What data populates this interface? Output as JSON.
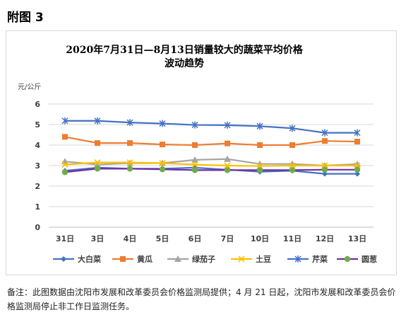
{
  "page": {
    "heading": "附图 3",
    "note": "备注：此图数据由沈阳市发展和改革委员会价格监测局提供；4 月 21 日起，沈阳市发展和改革委员会价格监测局停止非工作日监测任务。"
  },
  "chart_data": {
    "type": "line",
    "title_lines": [
      "2020年7月31日—8月13日销量较大的蔬菜平均价格",
      "波动趋势"
    ],
    "ylabel": "元/公斤",
    "xlabel": "",
    "categories": [
      "31日",
      "3日",
      "4日",
      "5日",
      "6日",
      "7日",
      "10日",
      "11日",
      "12日",
      "13日"
    ],
    "ylim": [
      0,
      6
    ],
    "yticks": [
      "0",
      "1",
      "2",
      "3",
      "4",
      "5",
      "6"
    ],
    "grid": true,
    "legend_position": "bottom",
    "series": [
      {
        "name": "大白菜",
        "color": "#4472c4",
        "marker": "diamond",
        "values": [
          2.75,
          2.9,
          2.85,
          2.85,
          2.9,
          2.8,
          2.7,
          2.75,
          2.6,
          2.6
        ]
      },
      {
        "name": "黄瓜",
        "color": "#ed7d31",
        "marker": "square",
        "values": [
          4.4,
          4.1,
          4.1,
          4.03,
          4.0,
          4.08,
          4.0,
          4.0,
          4.2,
          4.17
        ]
      },
      {
        "name": "绿茄子",
        "color": "#a5a5a5",
        "marker": "triangle",
        "values": [
          3.2,
          3.05,
          3.12,
          3.12,
          3.28,
          3.32,
          3.08,
          3.08,
          3.0,
          3.07
        ]
      },
      {
        "name": "土豆",
        "color": "#ffc000",
        "marker": "x",
        "values": [
          3.05,
          3.15,
          3.15,
          3.12,
          3.05,
          3.0,
          2.98,
          3.0,
          3.0,
          3.0
        ]
      },
      {
        "name": "芹菜",
        "color": "#4472c4",
        "marker": "star",
        "values": [
          5.18,
          5.18,
          5.1,
          5.05,
          4.98,
          4.97,
          4.92,
          4.82,
          4.6,
          4.6
        ]
      },
      {
        "name": "圆葱",
        "color": "#70ad47",
        "marker": "circle",
        "line_color": "#7030a0",
        "values": [
          2.68,
          2.85,
          2.85,
          2.82,
          2.78,
          2.78,
          2.78,
          2.78,
          2.8,
          2.8
        ]
      }
    ]
  }
}
